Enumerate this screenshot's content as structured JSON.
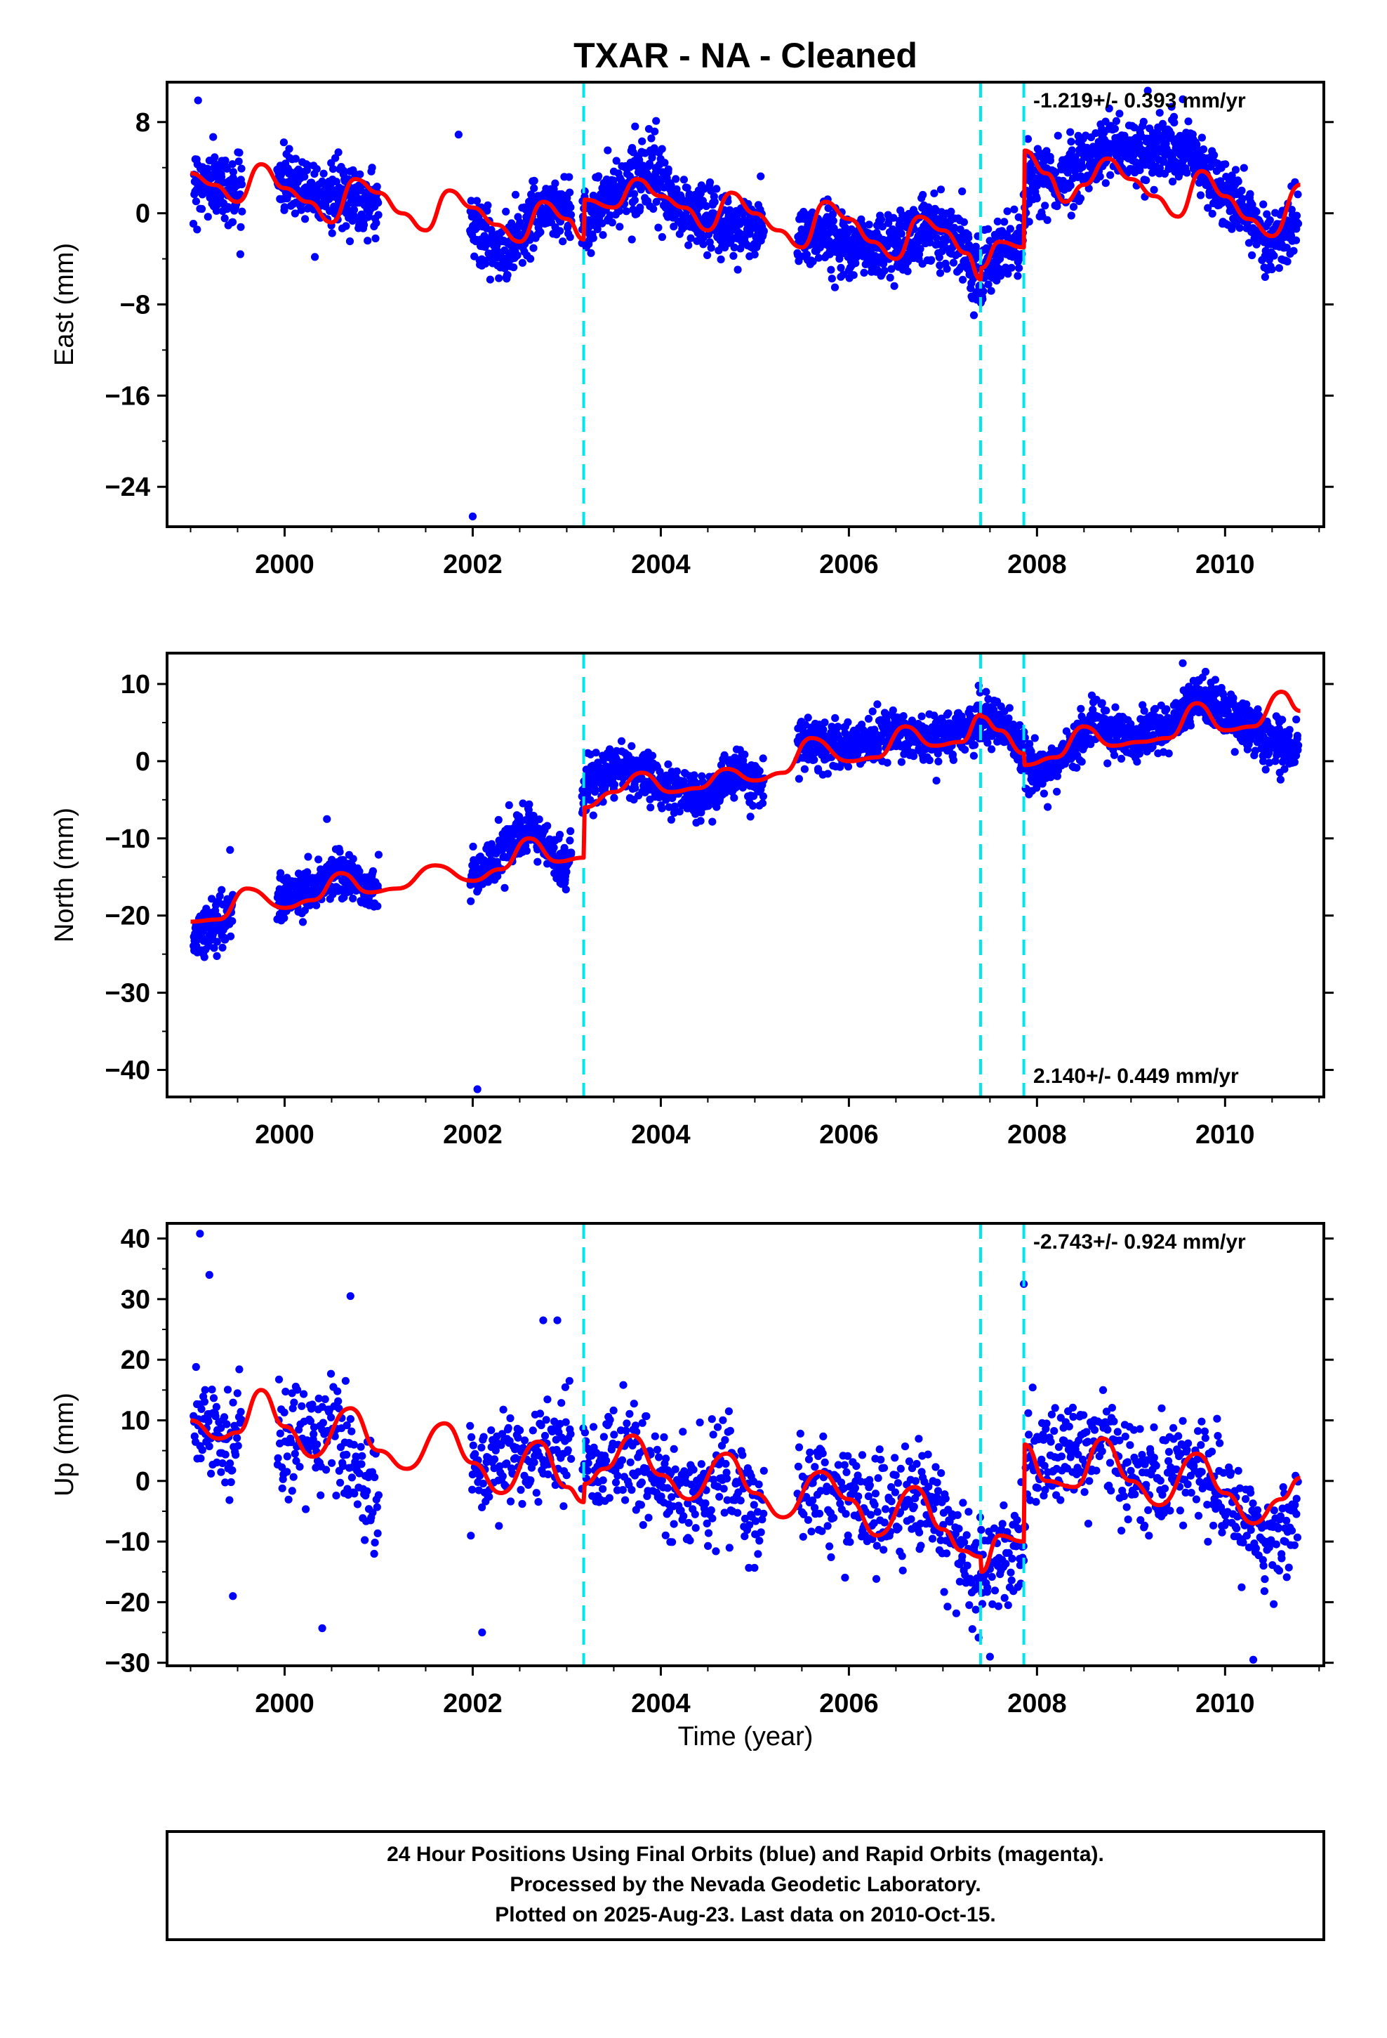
{
  "figure": {
    "title": "TXAR  - NA - Cleaned",
    "xlabel": "Time (year)",
    "footer": [
      "24 Hour Positions Using Final Orbits (blue) and Rapid Orbits (magenta).",
      "Processed by the Nevada Geodetic Laboratory.",
      "Plotted on 2025-Aug-23. Last data on 2010-Oct-15."
    ],
    "colors": {
      "data": "#0000ff",
      "model": "#ff0000",
      "steps": "#00e5ee",
      "frame": "#000000"
    }
  },
  "chart_data": [
    {
      "type": "scatter",
      "component": "East",
      "ylabel": "East (mm)",
      "xlim": [
        1998.75,
        2011.05
      ],
      "ylim": [
        -27.5,
        11.5
      ],
      "yticks": [
        8,
        0,
        -8,
        -16,
        -24
      ],
      "ytick_labels": [
        "8",
        "0",
        "−8",
        "−16",
        "−24"
      ],
      "xticks": [
        2000,
        2002,
        2004,
        2006,
        2008,
        2010
      ],
      "rate_label": "-1.219+/- 0.393 mm/yr",
      "rate_position": "top-right",
      "step_epochs": [
        2003.18,
        2007.4,
        2007.86
      ],
      "data_spans": [
        [
          1999.03,
          1999.55
        ],
        [
          1999.92,
          2001.0
        ],
        [
          2001.97,
          2003.05
        ],
        [
          2003.16,
          2005.1
        ],
        [
          2005.45,
          2010.78
        ]
      ],
      "model": {
        "x": [
          1999.0,
          1999.25,
          1999.5,
          1999.75,
          2000.0,
          2000.25,
          2000.5,
          2000.75,
          2001.0,
          2001.25,
          2001.5,
          2001.75,
          2002.0,
          2002.25,
          2002.5,
          2002.75,
          2003.0,
          2003.18,
          2003.19,
          2003.5,
          2003.75,
          2004.0,
          2004.25,
          2004.5,
          2004.75,
          2005.0,
          2005.25,
          2005.5,
          2005.75,
          2006.0,
          2006.25,
          2006.5,
          2006.75,
          2007.0,
          2007.25,
          2007.4,
          2007.41,
          2007.6,
          2007.86,
          2007.87,
          2008.1,
          2008.3,
          2008.5,
          2008.75,
          2009.0,
          2009.25,
          2009.5,
          2009.75,
          2010.0,
          2010.25,
          2010.5,
          2010.8
        ],
        "y": [
          3.5,
          2.5,
          1.0,
          4.3,
          2.2,
          1.0,
          -0.8,
          3.0,
          1.8,
          0.0,
          -1.5,
          2.0,
          0.5,
          -1.0,
          -2.5,
          1.0,
          -0.5,
          -2.3,
          1.2,
          0.5,
          3.0,
          1.5,
          0.5,
          -1.5,
          1.8,
          0.0,
          -1.5,
          -3.0,
          1.0,
          -0.5,
          -2.5,
          -4.0,
          -0.3,
          -1.5,
          -3.5,
          -5.8,
          -4.8,
          -2.5,
          -3.0,
          5.5,
          3.5,
          1.0,
          2.5,
          4.8,
          3.0,
          1.5,
          -0.3,
          3.7,
          1.5,
          -0.5,
          -2.0,
          2.5
        ]
      },
      "points": {
        "density": 260,
        "std": 1.4,
        "trend": {
          "x": [
            1999.0,
            1999.5,
            2000.0,
            2000.5,
            2001.0,
            2002.0,
            2002.3,
            2002.7,
            2003.0,
            2003.2,
            2003.5,
            2003.8,
            2004.2,
            2004.6,
            2005.0,
            2005.5,
            2005.8,
            2006.2,
            2006.6,
            2006.9,
            2007.2,
            2007.4,
            2007.6,
            2007.85,
            2007.9,
            2008.2,
            2008.5,
            2008.8,
            2009.0,
            2009.3,
            2009.6,
            2009.9,
            2010.2,
            2010.5,
            2010.8
          ],
          "y": [
            3.0,
            2.0,
            3.0,
            1.5,
            1.0,
            -1.0,
            -4.0,
            0.5,
            0.5,
            -0.5,
            1.5,
            4.0,
            0.5,
            -1.0,
            -1.5,
            -2.0,
            -2.0,
            -3.0,
            -2.5,
            -1.0,
            -2.5,
            -5.5,
            -3.5,
            -2.5,
            3.0,
            3.0,
            4.5,
            6.0,
            5.5,
            5.5,
            5.5,
            2.5,
            0.0,
            -2.5,
            -1.0
          ]
        },
        "outliers": [
          [
            1999.08,
            9.9
          ],
          [
            2002.0,
            -26.6
          ],
          [
            2001.85,
            6.9
          ],
          [
            2003.95,
            8.1
          ],
          [
            2009.55,
            10.0
          ]
        ]
      }
    },
    {
      "type": "scatter",
      "component": "North",
      "ylabel": "North (mm)",
      "xlim": [
        1998.75,
        2011.05
      ],
      "ylim": [
        -43.5,
        14.0
      ],
      "yticks": [
        10,
        0,
        -10,
        -20,
        -30,
        -40
      ],
      "ytick_labels": [
        "10",
        "0",
        "−10",
        "−20",
        "−30",
        "−40"
      ],
      "xticks": [
        2000,
        2002,
        2004,
        2006,
        2008,
        2010
      ],
      "rate_label": "2.140+/- 0.449 mm/yr",
      "rate_position": "bottom-right",
      "step_epochs": [
        2003.18,
        2007.4,
        2007.86
      ],
      "data_spans": [
        [
          1999.03,
          1999.45
        ],
        [
          1999.92,
          2001.0
        ],
        [
          2001.97,
          2003.05
        ],
        [
          2003.16,
          2005.1
        ],
        [
          2005.45,
          2010.78
        ]
      ],
      "model": {
        "x": [
          1999.0,
          1999.3,
          1999.6,
          2000.0,
          2000.3,
          2000.6,
          2000.9,
          2001.2,
          2001.6,
          2002.0,
          2002.3,
          2002.6,
          2002.9,
          2003.18,
          2003.19,
          2003.5,
          2003.8,
          2004.1,
          2004.4,
          2004.7,
          2005.0,
          2005.3,
          2005.6,
          2006.0,
          2006.3,
          2006.6,
          2006.9,
          2007.2,
          2007.4,
          2007.41,
          2007.6,
          2007.86,
          2007.87,
          2008.2,
          2008.5,
          2008.8,
          2009.1,
          2009.4,
          2009.7,
          2010.0,
          2010.3,
          2010.6,
          2010.8
        ],
        "y": [
          -20.8,
          -20.5,
          -16.5,
          -19.0,
          -18.0,
          -14.5,
          -17.0,
          -16.5,
          -13.5,
          -15.5,
          -14.0,
          -10.0,
          -13.0,
          -12.5,
          -6.0,
          -4.0,
          -1.5,
          -4.0,
          -3.5,
          -1.0,
          -2.5,
          -1.5,
          3.0,
          0.0,
          0.5,
          4.5,
          2.0,
          2.5,
          6.0,
          5.8,
          4.0,
          1.0,
          -0.5,
          0.5,
          4.5,
          2.0,
          2.5,
          3.0,
          7.5,
          4.0,
          4.5,
          9.0,
          6.5
        ]
      },
      "points": {
        "density": 260,
        "std": 1.5,
        "trend": {
          "x": [
            1999.0,
            1999.4,
            2000.0,
            2000.6,
            2001.0,
            2002.0,
            2002.6,
            2003.0,
            2003.2,
            2003.6,
            2004.0,
            2004.5,
            2004.8,
            2005.0,
            2005.5,
            2006.0,
            2006.5,
            2006.9,
            2007.3,
            2007.4,
            2007.7,
            2007.86,
            2007.9,
            2008.2,
            2008.6,
            2009.0,
            2009.4,
            2009.7,
            2010.0,
            2010.4,
            2010.8
          ],
          "y": [
            -23.0,
            -20.0,
            -18.0,
            -14.5,
            -17.0,
            -15.0,
            -9.0,
            -14.0,
            -3.0,
            -0.5,
            -3.0,
            -5.0,
            -1.0,
            -3.0,
            2.0,
            2.0,
            3.5,
            2.5,
            4.0,
            6.0,
            3.5,
            2.0,
            -1.0,
            -1.0,
            5.5,
            3.0,
            4.0,
            8.0,
            6.5,
            3.0,
            1.5
          ]
        },
        "outliers": [
          [
            2002.05,
            -42.5
          ],
          [
            1999.42,
            -11.5
          ],
          [
            2000.45,
            -7.5
          ],
          [
            2009.55,
            12.7
          ]
        ]
      }
    },
    {
      "type": "scatter",
      "component": "Up",
      "ylabel": "Up (mm)",
      "xlim": [
        1998.75,
        2011.05
      ],
      "ylim": [
        -30.5,
        42.5
      ],
      "yticks": [
        40,
        30,
        20,
        10,
        0,
        -10,
        -20,
        -30
      ],
      "ytick_labels": [
        "40",
        "30",
        "20",
        "10",
        "0",
        "−10",
        "−20",
        "−30"
      ],
      "xticks": [
        2000,
        2002,
        2004,
        2006,
        2008,
        2010
      ],
      "rate_label": "-2.743+/- 0.924 mm/yr",
      "rate_position": "top-right",
      "step_epochs": [
        2003.18,
        2007.4,
        2007.86
      ],
      "data_spans": [
        [
          1999.03,
          1999.55
        ],
        [
          1999.92,
          2001.0
        ],
        [
          2001.97,
          2003.05
        ],
        [
          2003.16,
          2005.1
        ],
        [
          2005.45,
          2010.78
        ]
      ],
      "model": {
        "x": [
          1999.0,
          1999.3,
          1999.5,
          1999.75,
          2000.0,
          2000.3,
          2000.7,
          2001.0,
          2001.3,
          2001.7,
          2002.0,
          2002.3,
          2002.7,
          2003.0,
          2003.18,
          2003.19,
          2003.4,
          2003.7,
          2004.0,
          2004.3,
          2004.7,
          2005.0,
          2005.3,
          2005.7,
          2006.0,
          2006.3,
          2006.7,
          2007.0,
          2007.2,
          2007.4,
          2007.41,
          2007.6,
          2007.86,
          2007.87,
          2008.1,
          2008.4,
          2008.7,
          2009.0,
          2009.3,
          2009.7,
          2010.0,
          2010.3,
          2010.6,
          2010.8
        ],
        "y": [
          10.0,
          7.0,
          8.0,
          15.0,
          9.0,
          4.0,
          12.0,
          5.0,
          2.0,
          9.5,
          3.0,
          -2.0,
          6.5,
          -1.0,
          -3.5,
          -0.5,
          2.0,
          7.5,
          1.0,
          -3.0,
          4.5,
          -2.0,
          -6.0,
          1.5,
          -3.0,
          -9.0,
          -1.0,
          -8.0,
          -11.5,
          -12.5,
          -15.0,
          -9.0,
          -10.0,
          6.0,
          0.0,
          -1.0,
          7.0,
          0.0,
          -4.0,
          4.5,
          -2.0,
          -7.0,
          -3.0,
          0.5
        ]
      },
      "points": {
        "density": 150,
        "std": 4.2,
        "trend": {
          "x": [
            1999.0,
            1999.5,
            2000.0,
            2000.5,
            2001.0,
            2002.0,
            2002.5,
            2003.0,
            2003.2,
            2003.7,
            2004.2,
            2004.7,
            2005.0,
            2005.6,
            2006.0,
            2006.4,
            2006.8,
            2007.1,
            2007.4,
            2007.6,
            2007.86,
            2007.9,
            2008.3,
            2008.7,
            2009.1,
            2009.6,
            2010.0,
            2010.4,
            2010.8
          ],
          "y": [
            9.0,
            6.0,
            6.0,
            9.0,
            -4.0,
            2.0,
            4.0,
            7.0,
            2.0,
            5.0,
            -3.0,
            2.0,
            -5.0,
            0.0,
            -4.0,
            -5.0,
            -2.0,
            -9.0,
            -16.0,
            -12.0,
            -10.0,
            4.0,
            3.0,
            8.0,
            0.0,
            4.0,
            -3.0,
            -10.0,
            -5.0
          ]
        },
        "outliers": [
          [
            1999.1,
            40.8
          ],
          [
            1999.2,
            34.0
          ],
          [
            2000.7,
            30.5
          ],
          [
            2002.75,
            26.5
          ],
          [
            2002.9,
            26.5
          ],
          [
            2007.86,
            32.5
          ],
          [
            2002.1,
            -25.0
          ],
          [
            1999.45,
            -19.0
          ],
          [
            2000.4,
            -24.3
          ],
          [
            2007.5,
            -29.0
          ],
          [
            2010.3,
            -29.5
          ]
        ]
      }
    }
  ]
}
